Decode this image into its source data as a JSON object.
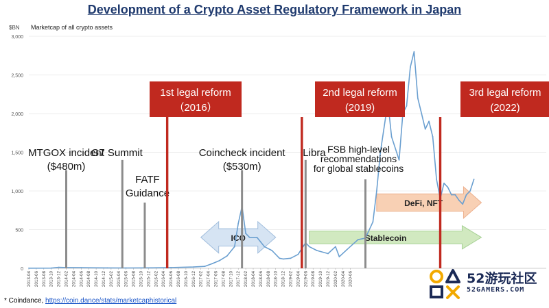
{
  "title": "Development of a Crypto Asset Regulatory Framework in Japan",
  "footer": {
    "note_prefix": "* Coindance, ",
    "link_text": "https://coin.dance/stats/marketcaphistorical"
  },
  "watermark": {
    "text": "52游玩社区",
    "sub": "52GAMERS.COM"
  },
  "colors": {
    "line": "#6a9fd0",
    "reform": "#c0291f",
    "event_bar": "#8c8c8c",
    "ico_fill": "#cfe0f2",
    "stablecoin_fill": "#c9e6b6",
    "defi_fill": "#f7c8a8",
    "grid": "#d9d9d9",
    "title": "#1f3a6e"
  },
  "chart_data": {
    "type": "line",
    "unit_label": "$BN",
    "series_label": "Marketcap of all crypto assets",
    "ylim": [
      0,
      3000
    ],
    "y_ticks": [
      0,
      500,
      1000,
      1500,
      2000,
      2500,
      3000
    ],
    "y_tick_labels": [
      "0",
      "500",
      "1,000",
      "1,500",
      "2,000",
      "2,500",
      "3,000"
    ],
    "x_tick_labels": [
      "2013-04",
      "2013-06",
      "2013-08",
      "2013-10",
      "2013-12",
      "2014-02",
      "2014-04",
      "2014-06",
      "2014-08",
      "2014-10",
      "2014-12",
      "2015-02",
      "2015-04",
      "2015-06",
      "2015-08",
      "2015-10",
      "2015-12",
      "2016-02",
      "2016-04",
      "2016-06",
      "2016-08",
      "2016-10",
      "2016-12",
      "2017-02",
      "2017-04",
      "2017-06",
      "2017-08",
      "2017-10",
      "2017-12",
      "2018-02",
      "2018-04",
      "2018-06",
      "2018-08",
      "2018-10",
      "2018-12",
      "2019-02",
      "2019-04",
      "2019-06",
      "2019-08",
      "2019-10",
      "2019-12",
      "2020-02",
      "2020-04",
      "2020-06"
    ],
    "x_first_month": "2013-04",
    "series": [
      {
        "x": [
          "2013-04",
          "2013-10",
          "2013-12",
          "2014-02",
          "2014-06",
          "2015-01",
          "2015-06",
          "2016-01",
          "2016-06",
          "2016-12",
          "2017-03",
          "2017-05",
          "2017-07",
          "2017-09",
          "2017-11",
          "2017-12",
          "2018-01",
          "2018-02",
          "2018-03",
          "2018-05",
          "2018-07",
          "2018-09",
          "2018-11",
          "2018-12",
          "2019-02",
          "2019-04",
          "2019-06",
          "2019-07",
          "2019-09",
          "2019-12",
          "2020-02",
          "2020-03",
          "2020-05",
          "2020-08",
          "2020-10",
          "2020-12",
          "2021-01",
          "2021-02",
          "2021-04",
          "2021-05",
          "2021-07",
          "2021-08",
          "2021-09",
          "2021-10",
          "2021-11",
          "2021-12",
          "2022-01",
          "2022-02",
          "2022-03",
          "2022-04",
          "2022-05",
          "2022-06",
          "2022-07",
          "2022-08",
          "2022-09",
          "2022-10",
          "2022-11",
          "2022-12",
          "2023-01",
          "2023-02",
          "2023-03"
        ],
        "values": [
          2,
          3,
          12,
          10,
          8,
          5,
          4,
          6,
          10,
          17,
          25,
          60,
          100,
          160,
          280,
          580,
          800,
          450,
          400,
          400,
          280,
          230,
          130,
          120,
          130,
          180,
          330,
          280,
          230,
          190,
          280,
          150,
          240,
          370,
          390,
          600,
          1000,
          1500,
          2150,
          1700,
          1400,
          2000,
          2100,
          2600,
          2800,
          2200,
          2000,
          1800,
          1900,
          1700,
          1150,
          900,
          1100,
          1050,
          950,
          950,
          880,
          830,
          950,
          1000,
          1150
        ]
      }
    ]
  },
  "reforms": [
    {
      "label_line1": "1st legal reform",
      "label_line2": "（2016）",
      "month": "2016-05"
    },
    {
      "label_line1": "2nd legal reform",
      "label_line2": "(2019)",
      "month": "2019-05"
    },
    {
      "label_line1": "3rd legal reform",
      "label_line2": "(2022)",
      "month": "2022-06"
    }
  ],
  "events": [
    {
      "label_line1": "MTGOX incident",
      "label_line2": "($480m)",
      "month": "2014-02",
      "top_value": 1270
    },
    {
      "label_line1": "G7 Summit",
      "label_line2": "",
      "month": "2015-05",
      "top_value": 1400
    },
    {
      "label_line1": "FATF",
      "label_line2": "Guidance",
      "month": "2015-11",
      "top_value": 850
    },
    {
      "label_line1": "Coincheck incident",
      "label_line2": "($530m)",
      "month": "2018-01",
      "top_value": 1270
    },
    {
      "label_line1": "Libra",
      "label_line2": "",
      "month": "2019-06",
      "top_value": 1400
    },
    {
      "label_line1": "FSB high-level",
      "label_line2": "recommendations",
      "label_line3": "for global stablecoins",
      "month": "2020-10",
      "top_value": 1150
    }
  ],
  "phase_arrows": [
    {
      "label": "ICO",
      "start": "2017-02",
      "end": "2018-10",
      "value": 400
    },
    {
      "label": "Stablecoin",
      "start": "2019-07",
      "end": "2023-05",
      "value": 400
    },
    {
      "label": "DeFi, NFT",
      "start": "2021-01",
      "end": "2023-05",
      "value": 850
    }
  ]
}
